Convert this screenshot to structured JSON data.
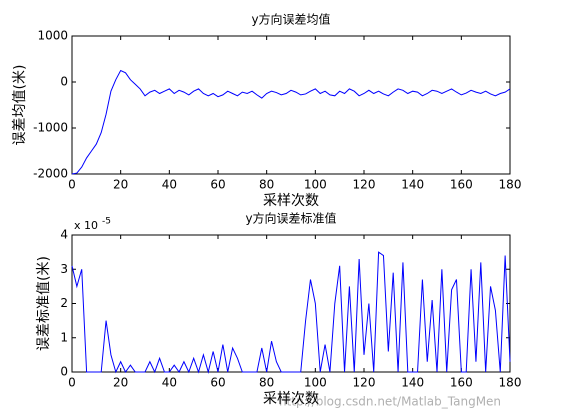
{
  "chart_data": [
    {
      "type": "line",
      "title": "y方向误差均值",
      "x_label": "采样次数",
      "y_label": "误差均值(米)",
      "x": [
        0,
        2,
        4,
        6,
        8,
        10,
        12,
        14,
        16,
        18,
        20,
        22,
        24,
        26,
        28,
        30,
        32,
        34,
        36,
        38,
        40,
        42,
        44,
        46,
        48,
        50,
        52,
        54,
        56,
        58,
        60,
        62,
        64,
        66,
        68,
        70,
        72,
        74,
        76,
        78,
        80,
        82,
        84,
        86,
        88,
        90,
        92,
        94,
        96,
        98,
        100,
        102,
        104,
        106,
        108,
        110,
        112,
        114,
        116,
        118,
        120,
        122,
        124,
        126,
        128,
        130,
        132,
        134,
        136,
        138,
        140,
        142,
        144,
        146,
        148,
        150,
        152,
        154,
        156,
        158,
        160,
        162,
        164,
        166,
        168,
        170,
        172,
        174,
        176,
        178,
        180
      ],
      "series": [
        {
          "color": "#0000ff",
          "values": [
            -2000,
            -1980,
            -1850,
            -1650,
            -1500,
            -1350,
            -1100,
            -700,
            -200,
            50,
            250,
            200,
            50,
            -50,
            -150,
            -300,
            -220,
            -180,
            -250,
            -200,
            -150,
            -250,
            -180,
            -220,
            -280,
            -200,
            -150,
            -250,
            -300,
            -250,
            -320,
            -280,
            -200,
            -250,
            -300,
            -220,
            -250,
            -200,
            -280,
            -350,
            -250,
            -200,
            -230,
            -280,
            -250,
            -180,
            -220,
            -280,
            -260,
            -200,
            -150,
            -250,
            -200,
            -280,
            -300,
            -200,
            -250,
            -150,
            -200,
            -300,
            -250,
            -180,
            -250,
            -200,
            -260,
            -300,
            -220,
            -150,
            -180,
            -250,
            -200,
            -220,
            -300,
            -250,
            -180,
            -200,
            -250,
            -200,
            -150,
            -220,
            -280,
            -240,
            -180,
            -220,
            -250,
            -200,
            -260,
            -300,
            -250,
            -220,
            -150
          ]
        }
      ],
      "xlim": [
        0,
        180
      ],
      "xticks": [
        0,
        20,
        40,
        60,
        80,
        100,
        120,
        140,
        160,
        180
      ],
      "ylim": [
        -2000,
        1000
      ],
      "yticks": [
        -2000,
        -1000,
        0,
        1000
      ]
    },
    {
      "type": "line",
      "title": "y方向误差标准值",
      "x_label": "采样次数",
      "y_label": "误差标准值(米)",
      "exponent_base": "x 10",
      "exponent": "-5",
      "x": [
        0,
        2,
        4,
        6,
        8,
        10,
        12,
        14,
        16,
        18,
        20,
        22,
        24,
        26,
        28,
        30,
        32,
        34,
        36,
        38,
        40,
        42,
        44,
        46,
        48,
        50,
        52,
        54,
        56,
        58,
        60,
        62,
        64,
        66,
        68,
        70,
        72,
        74,
        76,
        78,
        80,
        82,
        84,
        86,
        88,
        90,
        92,
        94,
        96,
        98,
        100,
        102,
        104,
        106,
        108,
        110,
        112,
        114,
        116,
        118,
        120,
        122,
        124,
        126,
        128,
        130,
        132,
        134,
        136,
        138,
        140,
        142,
        144,
        146,
        148,
        150,
        152,
        154,
        156,
        158,
        160,
        162,
        164,
        166,
        168,
        170,
        172,
        174,
        176,
        178,
        180
      ],
      "series": [
        {
          "color": "#0000ff",
          "values": [
            3.1,
            2.5,
            3.0,
            0,
            0,
            0,
            0,
            1.5,
            0.5,
            0,
            0.3,
            0,
            0.2,
            0,
            0,
            0,
            0.3,
            0,
            0.4,
            0,
            0,
            0.2,
            0,
            0.3,
            0,
            0.4,
            0,
            0.5,
            0,
            0.6,
            0,
            0.8,
            0,
            0.7,
            0.4,
            0,
            0,
            0,
            0,
            0.7,
            0,
            0.9,
            0.3,
            0,
            0,
            0,
            0,
            0,
            1.5,
            2.7,
            2.0,
            0,
            0.8,
            0,
            2.0,
            3.1,
            0,
            2.5,
            0,
            3.3,
            0.5,
            2.0,
            0,
            3.5,
            3.4,
            0.6,
            2.9,
            0,
            3.2,
            0,
            0,
            0,
            2.7,
            0.3,
            2.1,
            0,
            3.0,
            0,
            2.4,
            2.7,
            0,
            0,
            3.0,
            0.3,
            3.2,
            0,
            2.5,
            1.8,
            0,
            3.4,
            0.3
          ]
        }
      ],
      "xlim": [
        0,
        180
      ],
      "xticks": [
        0,
        20,
        40,
        60,
        80,
        100,
        120,
        140,
        160,
        180
      ],
      "ylim": [
        0,
        4
      ],
      "yticks": [
        0,
        1,
        2,
        3,
        4
      ]
    }
  ],
  "watermark": "http://blog.csdn.net/Matlab_TangMen"
}
